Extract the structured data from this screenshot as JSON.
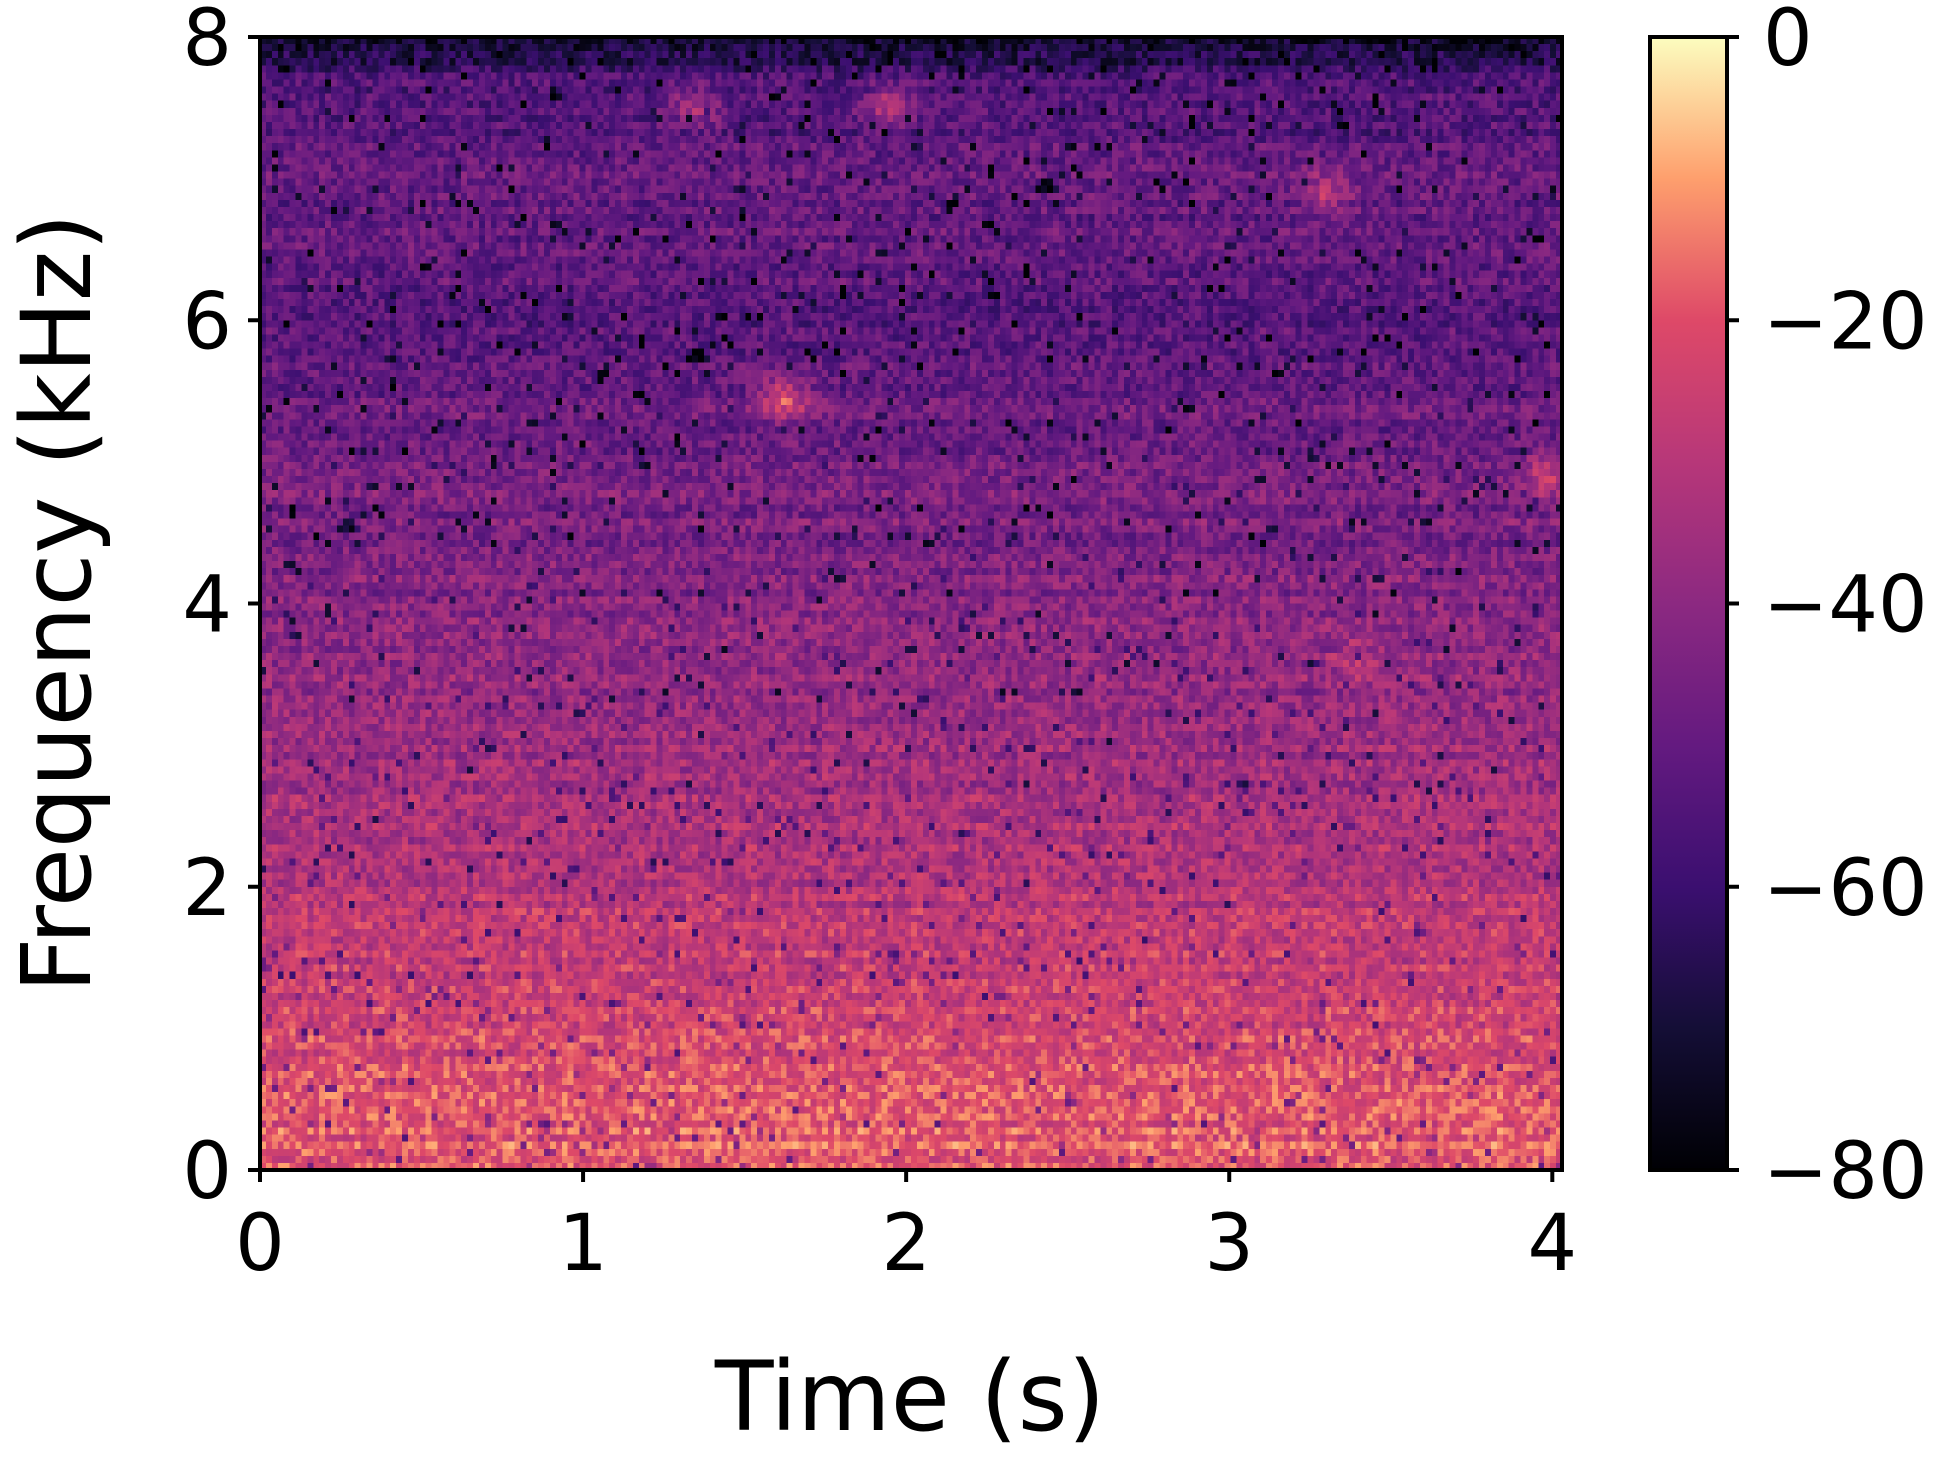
{
  "chart_data": {
    "type": "heatmap",
    "title": "",
    "xlabel": "Time (s)",
    "ylabel": "Frequency (kHz)",
    "xlim": [
      0,
      4.03
    ],
    "ylim": [
      0,
      8
    ],
    "x_ticks": [
      0,
      1,
      2,
      3,
      4
    ],
    "x_tick_labels": [
      "0",
      "1",
      "2",
      "3",
      "4"
    ],
    "y_ticks": [
      0,
      2,
      4,
      6,
      8
    ],
    "y_tick_labels": [
      "0",
      "2",
      "4",
      "6",
      "8"
    ],
    "grid": false,
    "colormap": "magma",
    "colorbar": {
      "range": [
        -80,
        0
      ],
      "ticks": [
        0,
        -20,
        -40,
        -60,
        -80
      ],
      "tick_labels": [
        "0",
        "−20",
        "−40",
        "−60",
        "−80"
      ]
    },
    "approx_level_profile_db": {
      "freq_khz": [
        0,
        0.5,
        1,
        2,
        3,
        4,
        5,
        6,
        7,
        7.7,
        8
      ],
      "level_db": [
        -18,
        -20,
        -24,
        -30,
        -36,
        -42,
        -46,
        -52,
        -50,
        -56,
        -76
      ]
    },
    "highlights": [
      {
        "t": 1.62,
        "f": 5.45,
        "db": -22
      },
      {
        "t": 3.4,
        "f": 3.6,
        "db": -30
      },
      {
        "t": 3.98,
        "f": 4.9,
        "db": -28
      },
      {
        "t": 3.3,
        "f": 6.9,
        "db": -32
      },
      {
        "t": 1.95,
        "f": 7.5,
        "db": -34
      },
      {
        "t": 1.35,
        "f": 7.5,
        "db": -36
      }
    ]
  }
}
